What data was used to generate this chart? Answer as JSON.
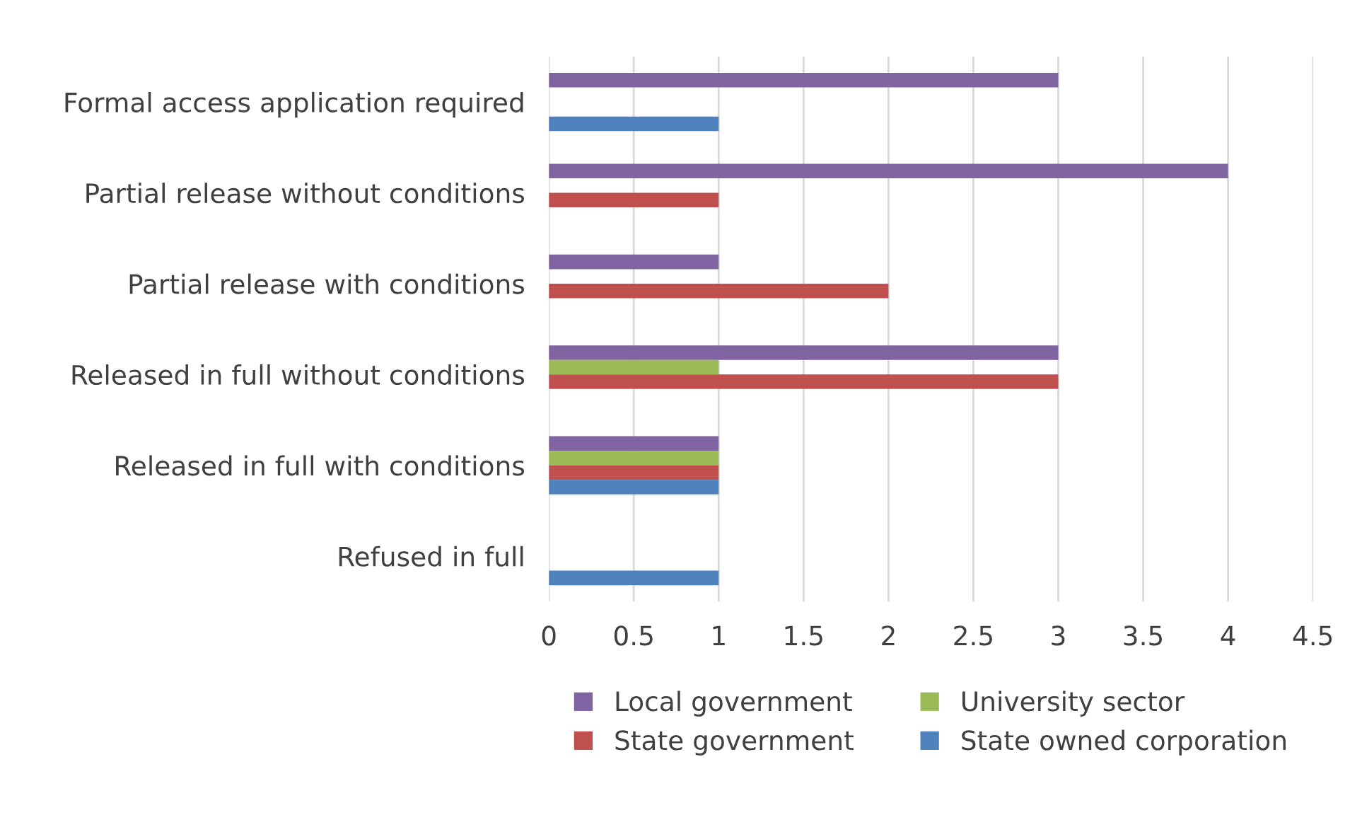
{
  "chart_data": {
    "type": "bar",
    "orientation": "horizontal",
    "categories": [
      "Formal access application required",
      "Partial release without conditions",
      "Partial release with conditions",
      "Released in full without conditions",
      "Released in full with conditions",
      "Refused in full"
    ],
    "series": [
      {
        "name": "Local government",
        "color": "#8064a2",
        "values": [
          3,
          4,
          1,
          3,
          1,
          0
        ]
      },
      {
        "name": "University sector",
        "color": "#9bbb59",
        "values": [
          0,
          0,
          0,
          1,
          1,
          0
        ]
      },
      {
        "name": "State government",
        "color": "#c0504d",
        "values": [
          0,
          1,
          2,
          3,
          1,
          0
        ]
      },
      {
        "name": "State owned corporation",
        "color": "#4f81bd",
        "values": [
          1,
          0,
          0,
          0,
          1,
          1
        ]
      }
    ],
    "xlim": [
      0,
      4.5
    ],
    "xticks": [
      0,
      0.5,
      1,
      1.5,
      2,
      2.5,
      3,
      3.5,
      4,
      4.5
    ],
    "grid": "x",
    "legend": "bottom"
  }
}
